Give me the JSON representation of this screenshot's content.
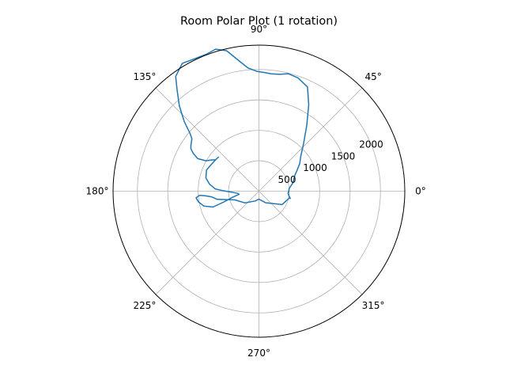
{
  "chart_data": {
    "type": "line",
    "projection": "polar",
    "title": "Room Polar Plot (1 rotation)",
    "angle_ticks": [
      {
        "deg": 0,
        "label": "0°"
      },
      {
        "deg": 45,
        "label": "45°"
      },
      {
        "deg": 90,
        "label": "90°"
      },
      {
        "deg": 135,
        "label": "135°"
      },
      {
        "deg": 180,
        "label": "180°"
      },
      {
        "deg": 225,
        "label": "225°"
      },
      {
        "deg": 270,
        "label": "270°"
      },
      {
        "deg": 315,
        "label": "315°"
      }
    ],
    "radial_ticks": [
      {
        "value": 500,
        "label": "500"
      },
      {
        "value": 1000,
        "label": "1000"
      },
      {
        "value": 1500,
        "label": "1500"
      },
      {
        "value": 2000,
        "label": "2000"
      }
    ],
    "rlim": [
      0,
      2400
    ],
    "grid": true,
    "series": [
      {
        "color": "#1f77b4",
        "theta_deg": [
          -13,
          -9,
          -4,
          0,
          5,
          9,
          13,
          18,
          24,
          29,
          34,
          40,
          47,
          54,
          60,
          65,
          71,
          76,
          80,
          84,
          87,
          91,
          95,
          99,
          103,
          107,
          111,
          116,
          121,
          126,
          129,
          133,
          137,
          140,
          142,
          146,
          148,
          150,
          152,
          151,
          150,
          147,
          144,
          140,
          144,
          151,
          158,
          166,
          172,
          177,
          179,
          182,
          186,
          189,
          193,
          197,
          199,
          195,
          190,
          186,
          184,
          185,
          187,
          191,
          200,
          220,
          250,
          270,
          300,
          330,
          347
        ],
        "r": [
          530,
          500,
          480,
          490,
          500,
          530,
          570,
          600,
          650,
          720,
          810,
          900,
          1080,
          1340,
          1640,
          1890,
          1970,
          1990,
          1950,
          1940,
          1950,
          1970,
          2030,
          2180,
          2370,
          2440,
          2410,
          2420,
          2450,
          2330,
          2140,
          1920,
          1680,
          1480,
          1400,
          1350,
          1320,
          1250,
          1140,
          1060,
          1000,
          940,
          880,
          870,
          880,
          900,
          930,
          900,
          820,
          720,
          600,
          450,
          350,
          330,
          450,
          600,
          800,
          940,
          1010,
          1040,
          980,
          880,
          780,
          700,
          420,
          300,
          170,
          130,
          220,
          440,
          510
        ]
      }
    ]
  }
}
